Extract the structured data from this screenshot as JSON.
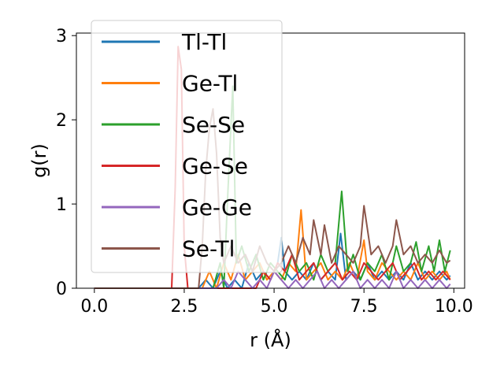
{
  "chart_data": {
    "type": "line",
    "title": "",
    "xlabel": "r (Å)",
    "ylabel": "g(r)",
    "xlim": [
      -0.5,
      10.3
    ],
    "ylim": [
      0,
      3.03
    ],
    "xticks": [
      0.0,
      2.5,
      5.0,
      7.5,
      10.0
    ],
    "xtick_labels": [
      "0.0",
      "2.5",
      "5.0",
      "7.5",
      "10.0"
    ],
    "yticks": [
      0,
      1,
      2,
      3
    ],
    "ytick_labels": [
      "0",
      "1",
      "2",
      "3"
    ],
    "grid": false,
    "legend_position": "top-left",
    "series": [
      {
        "name": "Tl-Tl",
        "color": "#1f77b4",
        "x": [
          0.0,
          2.9,
          3.1,
          3.3,
          3.5,
          3.7,
          3.9,
          4.1,
          4.3,
          4.5,
          4.7,
          4.9,
          5.1,
          5.2,
          5.3,
          5.5,
          5.7,
          5.9,
          6.1,
          6.3,
          6.5,
          6.7,
          6.85,
          7.0,
          7.2,
          7.4,
          7.6,
          7.8,
          8.0,
          8.2,
          8.4,
          8.6,
          8.8,
          9.0,
          9.2,
          9.4,
          9.6,
          9.8,
          9.9
        ],
        "y": [
          0.0,
          0.0,
          0.1,
          0.0,
          0.2,
          0.0,
          0.1,
          0.0,
          0.3,
          0.1,
          0.2,
          0.1,
          0.3,
          0.6,
          0.2,
          0.1,
          0.2,
          0.1,
          0.3,
          0.1,
          0.2,
          0.1,
          0.65,
          0.1,
          0.2,
          0.1,
          0.3,
          0.1,
          0.2,
          0.1,
          0.2,
          0.1,
          0.3,
          0.1,
          0.2,
          0.1,
          0.2,
          0.1,
          0.15
        ]
      },
      {
        "name": "Ge-Tl",
        "color": "#ff7f0e",
        "x": [
          0.0,
          3.0,
          3.2,
          3.4,
          3.6,
          3.8,
          4.0,
          4.2,
          4.4,
          4.6,
          4.8,
          5.0,
          5.2,
          5.4,
          5.6,
          5.75,
          5.9,
          6.1,
          6.3,
          6.5,
          6.7,
          6.9,
          7.1,
          7.3,
          7.5,
          7.6,
          7.8,
          8.0,
          8.2,
          8.4,
          8.6,
          8.8,
          9.0,
          9.2,
          9.4,
          9.6,
          9.8,
          9.9
        ],
        "y": [
          0.0,
          0.0,
          0.2,
          0.0,
          0.3,
          0.1,
          0.4,
          0.1,
          0.2,
          0.3,
          0.1,
          0.2,
          0.1,
          0.3,
          0.2,
          0.93,
          0.1,
          0.2,
          0.3,
          0.1,
          0.2,
          0.1,
          0.3,
          0.1,
          0.57,
          0.2,
          0.1,
          0.3,
          0.2,
          0.1,
          0.2,
          0.1,
          0.3,
          0.1,
          0.2,
          0.1,
          0.2,
          0.1
        ]
      },
      {
        "name": "Se-Se",
        "color": "#2ca02c",
        "x": [
          0.0,
          3.3,
          3.5,
          3.6,
          3.7,
          3.85,
          3.95,
          4.1,
          4.3,
          4.5,
          4.7,
          4.9,
          5.1,
          5.3,
          5.5,
          5.7,
          5.9,
          6.1,
          6.3,
          6.5,
          6.7,
          6.88,
          7.05,
          7.2,
          7.4,
          7.6,
          7.8,
          8.0,
          8.2,
          8.4,
          8.6,
          8.8,
          8.95,
          9.1,
          9.3,
          9.45,
          9.6,
          9.75,
          9.9
        ],
        "y": [
          0.0,
          0.0,
          0.3,
          0.0,
          1.0,
          2.4,
          0.3,
          0.5,
          0.2,
          0.4,
          0.1,
          0.3,
          0.2,
          0.1,
          0.4,
          0.2,
          0.3,
          0.1,
          0.4,
          0.2,
          0.3,
          1.15,
          0.2,
          0.4,
          0.1,
          0.3,
          0.2,
          0.4,
          0.1,
          0.5,
          0.2,
          0.3,
          0.55,
          0.2,
          0.5,
          0.2,
          0.57,
          0.2,
          0.45
        ]
      },
      {
        "name": "Ge-Se",
        "color": "#d62728",
        "x": [
          0.0,
          2.15,
          2.25,
          2.33,
          2.42,
          2.5,
          2.6,
          4.5,
          4.7,
          4.9,
          5.1,
          5.3,
          5.5,
          5.7,
          5.9,
          6.1,
          6.3,
          6.5,
          6.7,
          6.9,
          7.1,
          7.3,
          7.5,
          7.7,
          7.9,
          8.1,
          8.3,
          8.5,
          8.7,
          8.9,
          9.1,
          9.3,
          9.5,
          9.7,
          9.9
        ],
        "y": [
          0.0,
          0.0,
          1.2,
          2.87,
          2.6,
          0.5,
          0.0,
          0.0,
          0.2,
          0.1,
          0.3,
          0.2,
          0.4,
          0.1,
          0.2,
          0.3,
          0.1,
          0.2,
          0.3,
          0.1,
          0.2,
          0.1,
          0.3,
          0.2,
          0.1,
          0.2,
          0.3,
          0.1,
          0.2,
          0.3,
          0.1,
          0.2,
          0.1,
          0.2,
          0.1
        ]
      },
      {
        "name": "Ge-Ge",
        "color": "#9467bd",
        "x": [
          0.0,
          3.4,
          3.6,
          3.8,
          4.0,
          4.2,
          4.4,
          4.6,
          4.8,
          5.0,
          5.2,
          5.4,
          5.6,
          5.8,
          6.0,
          6.2,
          6.4,
          6.6,
          6.8,
          7.0,
          7.2,
          7.4,
          7.6,
          7.8,
          8.0,
          8.2,
          8.4,
          8.6,
          8.8,
          9.0,
          9.2,
          9.4,
          9.6,
          9.8,
          9.9
        ],
        "y": [
          0.0,
          0.0,
          0.1,
          0.0,
          0.2,
          0.1,
          0.0,
          0.1,
          0.0,
          0.2,
          0.1,
          0.0,
          0.1,
          0.0,
          0.1,
          0.2,
          0.0,
          0.1,
          0.0,
          0.1,
          0.2,
          0.0,
          0.1,
          0.0,
          0.1,
          0.0,
          0.2,
          0.0,
          0.1,
          0.0,
          0.1,
          0.0,
          0.1,
          0.0,
          0.05
        ]
      },
      {
        "name": "Se-Tl",
        "color": "#8c564b",
        "x": [
          0.0,
          2.9,
          3.0,
          3.1,
          3.2,
          3.3,
          3.4,
          3.5,
          3.6,
          3.8,
          4.0,
          4.2,
          4.4,
          4.6,
          4.8,
          5.0,
          5.2,
          5.4,
          5.6,
          5.8,
          6.0,
          6.1,
          6.3,
          6.4,
          6.6,
          6.8,
          7.0,
          7.2,
          7.4,
          7.5,
          7.7,
          7.9,
          8.1,
          8.3,
          8.4,
          8.6,
          8.8,
          9.0,
          9.2,
          9.4,
          9.6,
          9.8,
          9.9
        ],
        "y": [
          0.0,
          0.0,
          0.5,
          1.4,
          1.9,
          2.13,
          1.6,
          0.6,
          0.3,
          0.5,
          0.3,
          0.4,
          0.2,
          0.5,
          0.3,
          0.2,
          0.3,
          0.5,
          0.3,
          0.6,
          0.4,
          0.81,
          0.4,
          0.75,
          0.3,
          0.5,
          0.4,
          0.3,
          0.5,
          0.98,
          0.4,
          0.5,
          0.3,
          0.5,
          0.81,
          0.4,
          0.5,
          0.3,
          0.4,
          0.3,
          0.45,
          0.3,
          0.33
        ]
      }
    ]
  }
}
